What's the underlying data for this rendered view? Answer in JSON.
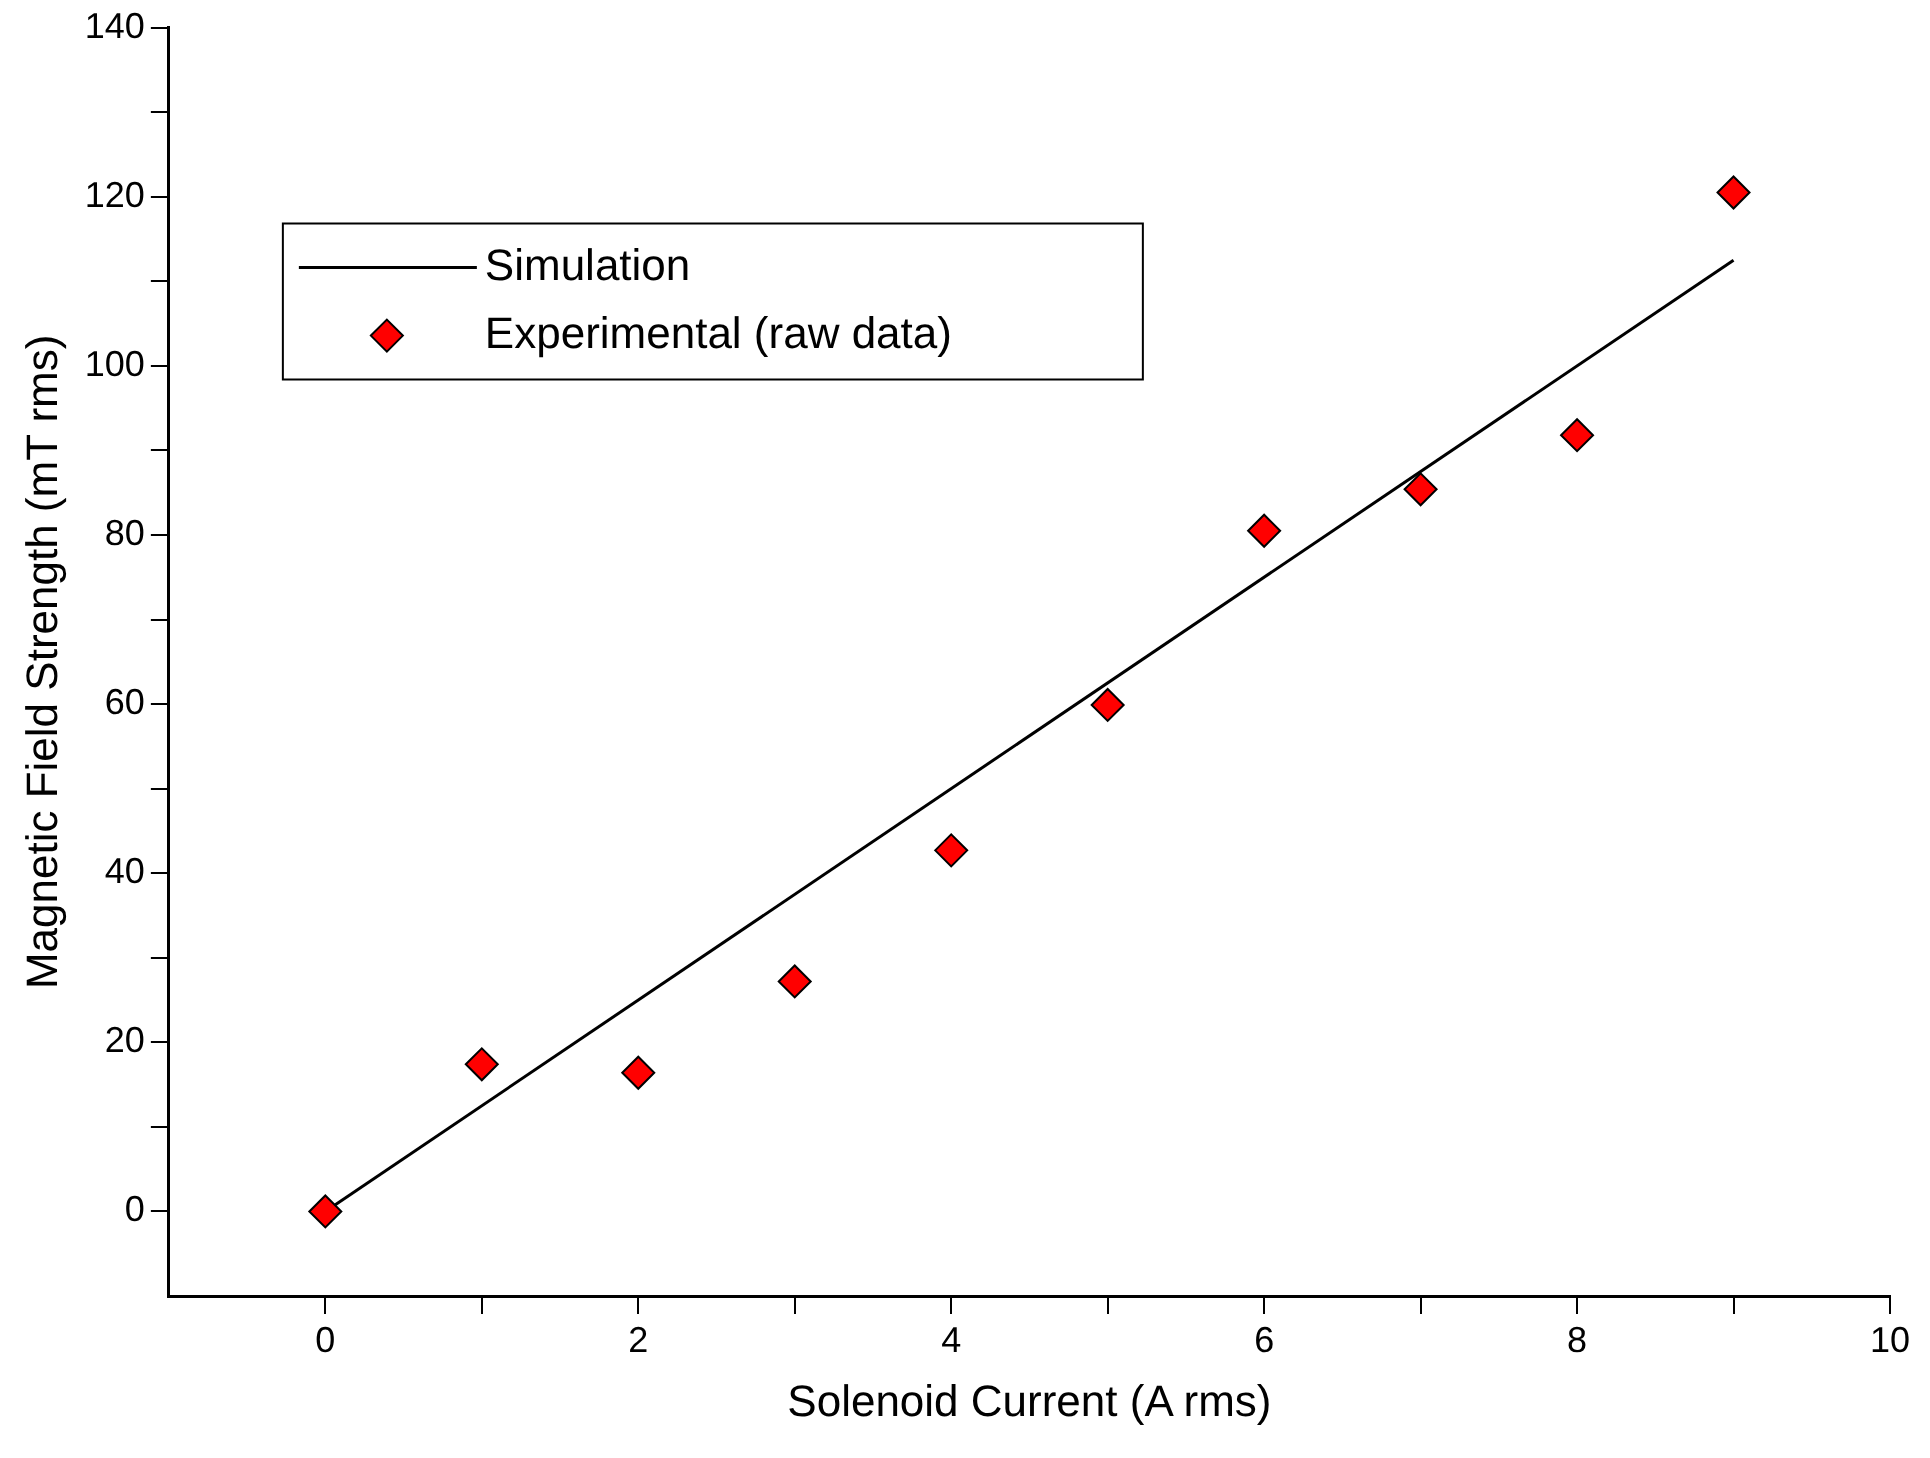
{
  "chart_data": {
    "type": "scatter",
    "xlabel": "Solenoid Current (A rms)",
    "ylabel": "Magnetic Field Strength (mT rms)",
    "xlim": [
      -1,
      10
    ],
    "xticks": [
      0,
      {
        "value": 1,
        "label": null
      },
      2,
      {
        "value": 3,
        "label": null
      },
      4,
      {
        "value": 5,
        "label": null
      },
      6,
      {
        "value": 7,
        "label": null
      },
      8,
      {
        "value": 9,
        "label": null
      },
      10
    ],
    "ylim": [
      -10,
      140
    ],
    "yticks": [
      0,
      {
        "value": 10,
        "label": null
      },
      20,
      {
        "value": 30,
        "label": null
      },
      40,
      {
        "value": 50,
        "label": null
      },
      60,
      {
        "value": 70,
        "label": null
      },
      80,
      {
        "value": 90,
        "label": null
      },
      100,
      {
        "value": 110,
        "label": null
      },
      120,
      {
        "value": 130,
        "label": null
      },
      140
    ],
    "grid": false,
    "legend": "top left",
    "series": [
      {
        "name": "Simulation",
        "type": "line",
        "color": "#000000",
        "marker": "none",
        "line_style": "solid",
        "x": [
          0,
          9
        ],
        "values": [
          0,
          112.5
        ]
      },
      {
        "name": "Experimental (raw data)",
        "type": "scatter",
        "color": "#ff0000",
        "marker": "diamond",
        "x": [
          0,
          1,
          2,
          3,
          4,
          5,
          6,
          7,
          8,
          9
        ],
        "values": [
          0,
          17.4,
          16.4,
          27.2,
          42.7,
          59.9,
          80.5,
          85.4,
          91.8,
          120.5
        ]
      }
    ]
  }
}
